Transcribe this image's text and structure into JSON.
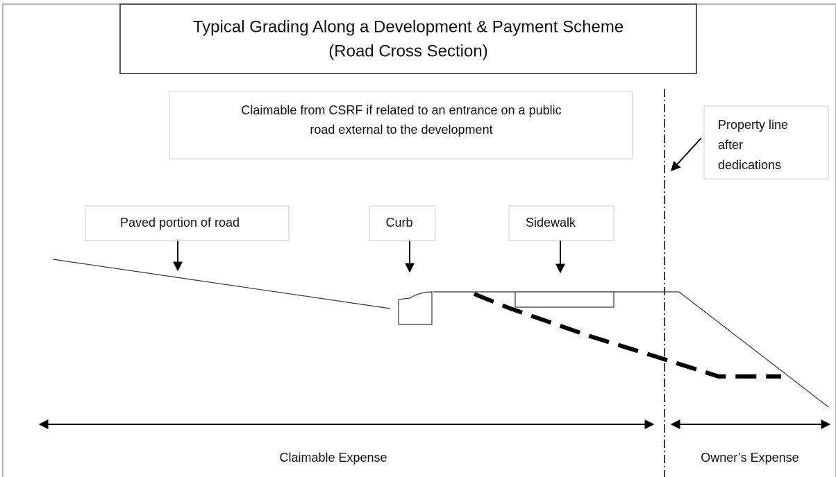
{
  "title": {
    "lines": [
      "Typical Grading Along a Development & Payment Scheme",
      "(Road Cross Section)"
    ]
  },
  "note": {
    "lines": [
      "Claimable from CSRF if related to an entrance on a public",
      "road external to the development"
    ]
  },
  "property_line": {
    "lines": [
      "Property line",
      "after",
      "dedications"
    ]
  },
  "labels": {
    "paved": "Paved portion of road",
    "curb": "Curb",
    "sidewalk": "Sidewalk"
  },
  "expenses": {
    "claimable": "Claimable Expense",
    "owner": "Owner’s Expense"
  }
}
